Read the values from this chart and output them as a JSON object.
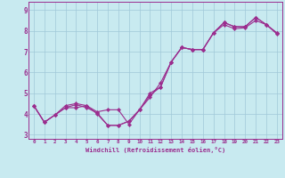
{
  "xlabel": "Windchill (Refroidissement éolien,°C)",
  "background_color": "#c8eaf0",
  "line_color": "#9b2d8e",
  "grid_color": "#a0c8d8",
  "xmin": -0.5,
  "xmax": 23.5,
  "ymin": 2.8,
  "ymax": 9.4,
  "yticks": [
    3,
    4,
    5,
    6,
    7,
    8,
    9
  ],
  "xticks": [
    0,
    1,
    2,
    3,
    4,
    5,
    6,
    7,
    8,
    9,
    10,
    11,
    12,
    13,
    14,
    15,
    16,
    17,
    18,
    19,
    20,
    21,
    22,
    23
  ],
  "line1_x": [
    0,
    1,
    2,
    3,
    4,
    5,
    6,
    7,
    8,
    9,
    10,
    11,
    12,
    13,
    14,
    15,
    16,
    17,
    18,
    19,
    20,
    21,
    22,
    23
  ],
  "line1_y": [
    4.4,
    3.6,
    3.95,
    4.4,
    4.5,
    4.4,
    4.1,
    4.2,
    4.2,
    3.5,
    4.2,
    4.8,
    5.5,
    6.5,
    7.2,
    7.1,
    7.1,
    7.9,
    8.4,
    8.2,
    8.2,
    8.65,
    8.3,
    7.9
  ],
  "line2_x": [
    0,
    1,
    2,
    3,
    4,
    5,
    6,
    7,
    8,
    9,
    10,
    11,
    12,
    13,
    14,
    15,
    16,
    17,
    18,
    19,
    20,
    21,
    22,
    23
  ],
  "line2_y": [
    4.4,
    3.6,
    3.95,
    4.3,
    4.45,
    4.3,
    4.05,
    3.45,
    3.45,
    3.65,
    4.2,
    5.0,
    5.3,
    6.5,
    7.2,
    7.1,
    7.1,
    7.9,
    8.4,
    8.2,
    8.2,
    8.65,
    8.3,
    7.9
  ],
  "line3_x": [
    0,
    1,
    2,
    3,
    4,
    5,
    6,
    7,
    8,
    9,
    10,
    11,
    12,
    13,
    14,
    15,
    16,
    17,
    18,
    19,
    20,
    21,
    22,
    23
  ],
  "line3_y": [
    4.4,
    3.6,
    3.95,
    4.3,
    4.3,
    4.4,
    4.0,
    3.45,
    3.45,
    3.65,
    4.2,
    4.9,
    5.3,
    6.5,
    7.2,
    7.1,
    7.1,
    7.9,
    8.3,
    8.1,
    8.15,
    8.5,
    8.3,
    7.85
  ],
  "xlabel_fontsize": 5.0,
  "tick_fontsize_x": 4.2,
  "tick_fontsize_y": 5.5
}
